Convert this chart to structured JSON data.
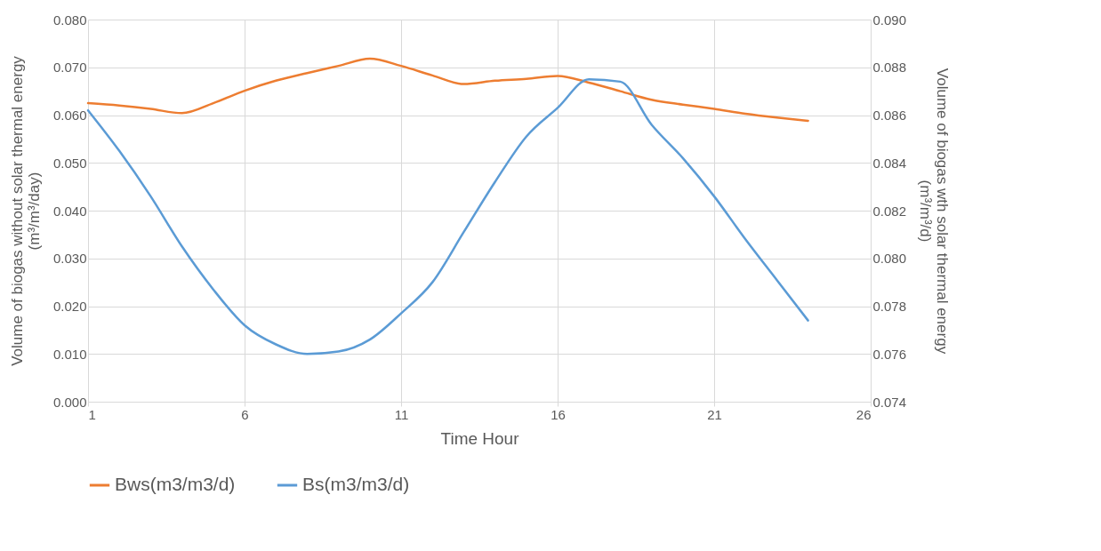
{
  "chart_data": {
    "type": "line",
    "xlabel": "Time Hour",
    "ylabel": "Volume of biogas  without solar thermal energy\n(m³/m³/day)",
    "y2label": "Volume of biogas wth solar thermal energy\n(m³/m³/d)",
    "x": [
      1,
      2,
      3,
      4,
      5,
      6,
      7,
      8,
      9,
      10,
      11,
      12,
      13,
      14,
      15,
      16,
      17,
      18,
      19,
      20,
      21,
      22,
      23,
      24
    ],
    "series": [
      {
        "name": "Bws(m3/m3/d)",
        "color": "#ed7d31",
        "values": [
          0.0625,
          0.062,
          0.0613,
          0.0604,
          0.0625,
          0.0651,
          0.0672,
          0.0688,
          0.0703,
          0.0718,
          0.0703,
          0.0683,
          0.0665,
          0.0672,
          0.0676,
          0.0682,
          0.0668,
          0.065,
          0.0632,
          0.0622,
          0.0613,
          0.0603,
          0.0595,
          0.0588
        ]
      },
      {
        "name": "Bs(m3/m3/d)",
        "color": "#5b9bd5",
        "axis": "y2",
        "values": [
          0.0862,
          0.0845,
          0.0826,
          0.0805,
          0.0787,
          0.0772,
          0.0764,
          0.076,
          0.0761,
          0.0766,
          0.0777,
          0.079,
          0.0811,
          0.0832,
          0.0851,
          0.0863,
          0.0875,
          0.0874,
          0.0856,
          0.0842,
          0.0826,
          0.0808,
          0.0791,
          0.0774
        ]
      }
    ],
    "xlim": [
      1,
      26
    ],
    "xticks": [
      1,
      6,
      11,
      16,
      21,
      26
    ],
    "ylim": [
      0,
      0.08
    ],
    "yticks": [
      {
        "value": 0,
        "label": "0.000"
      },
      {
        "value": 0.01,
        "label": "0.010"
      },
      {
        "value": 0.02,
        "label": "0.020"
      },
      {
        "value": 0.03,
        "label": "0.030"
      },
      {
        "value": 0.04,
        "label": "0.040"
      },
      {
        "value": 0.05,
        "label": "0.050"
      },
      {
        "value": 0.06,
        "label": "0.060"
      },
      {
        "value": 0.07,
        "label": "0.070"
      },
      {
        "value": 0.08,
        "label": "0.080"
      }
    ],
    "y2lim": [
      0.074,
      0.09
    ],
    "y2ticks": [
      {
        "value": 0.074,
        "label": "0.074"
      },
      {
        "value": 0.076,
        "label": "0.076"
      },
      {
        "value": 0.078,
        "label": "0.078"
      },
      {
        "value": 0.08,
        "label": "0.080"
      },
      {
        "value": 0.082,
        "label": "0.082"
      },
      {
        "value": 0.084,
        "label": "0.084"
      },
      {
        "value": 0.086,
        "label": "0.086"
      },
      {
        "value": 0.088,
        "label": "0.088"
      },
      {
        "value": 0.09,
        "label": "0.090"
      }
    ],
    "grid": true,
    "legend": "bottom",
    "marker": "none",
    "line_style": "solid"
  }
}
